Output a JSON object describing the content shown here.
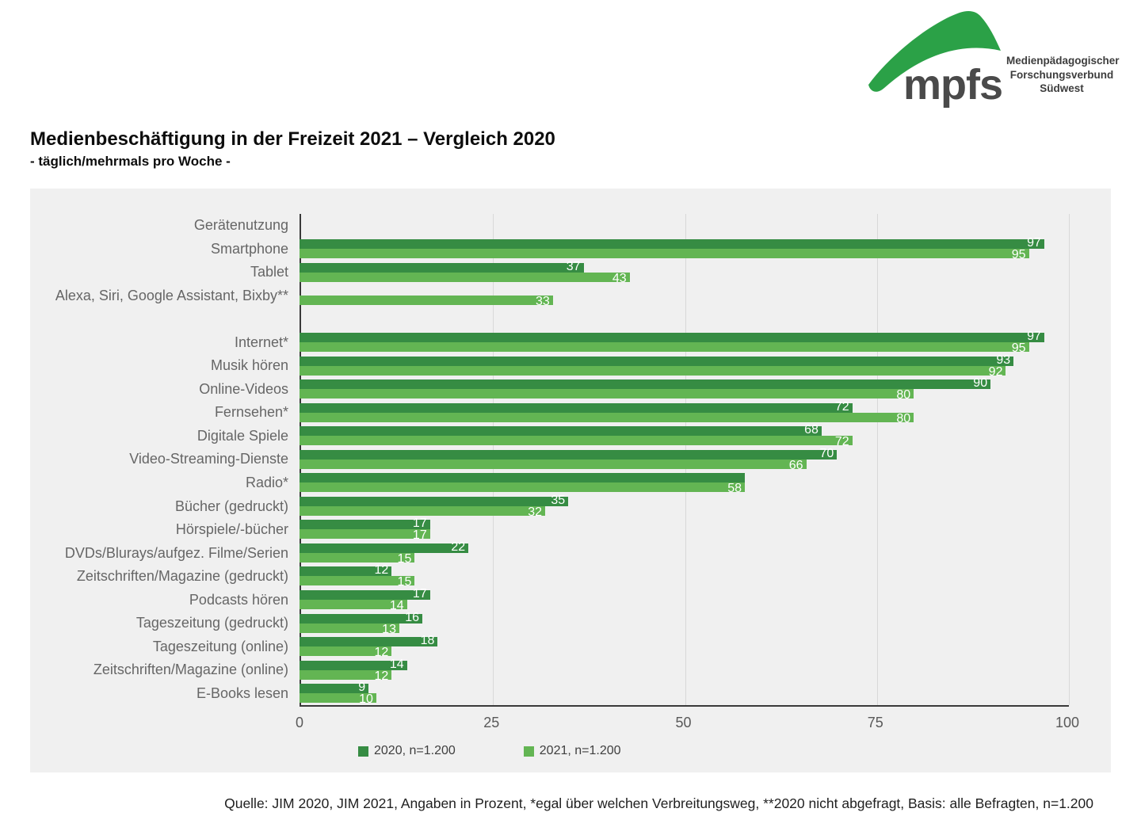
{
  "logo": {
    "brand": "mpfs",
    "org_lines": [
      "Medienpädagogischer",
      "Forschungsverbund",
      "Südwest"
    ],
    "swoosh_color": "#2ba147"
  },
  "header": {
    "title": "Medienbeschäftigung in der Freizeit 2021 – Vergleich 2020",
    "subtitle": "- täglich/mehrmals pro Woche -"
  },
  "chart_data": {
    "type": "bar",
    "orientation": "horizontal",
    "title": "Medienbeschäftigung in der Freizeit 2021 – Vergleich 2020",
    "subtitle": "- täglich/mehrmals pro Woche -",
    "unit": "Prozent",
    "xlim": [
      0,
      100
    ],
    "xticks": [
      0,
      25,
      50,
      75,
      100
    ],
    "grid": "vertical",
    "legend_position": "bottom",
    "panel_background": "#f0f0f0",
    "series": [
      {
        "name": "2020, n=1.200",
        "color": "#368c43"
      },
      {
        "name": "2021, n=1.200",
        "color": "#63b553"
      }
    ],
    "rows": [
      {
        "type": "section",
        "label": "Gerätenutzung"
      },
      {
        "type": "bars",
        "label": "Smartphone",
        "v2020": 97,
        "v2021": 95
      },
      {
        "type": "bars",
        "label": "Tablet",
        "v2020": 37,
        "v2021": 43
      },
      {
        "type": "bars",
        "label": "Alexa, Siri, Google Assistant, Bixby**",
        "v2020": null,
        "v2021": 33
      },
      {
        "type": "spacer",
        "label": ""
      },
      {
        "type": "bars",
        "label": "Internet*",
        "v2020": 97,
        "v2021": 95
      },
      {
        "type": "bars",
        "label": "Musik hören",
        "v2020": 93,
        "v2021": 92
      },
      {
        "type": "bars",
        "label": "Online-Videos",
        "v2020": 90,
        "v2021": 80
      },
      {
        "type": "bars",
        "label": "Fernsehen*",
        "v2020": 72,
        "v2021": 80
      },
      {
        "type": "bars",
        "label": "Digitale Spiele",
        "v2020": 68,
        "v2021": 72
      },
      {
        "type": "bars",
        "label": "Video-Streaming-Dienste",
        "v2020": 70,
        "v2021": 66
      },
      {
        "type": "bars",
        "label": "Radio*",
        "v2020": 58,
        "v2021": 58,
        "show2020Label": false
      },
      {
        "type": "bars",
        "label": "Bücher (gedruckt)",
        "v2020": 35,
        "v2021": 32
      },
      {
        "type": "bars",
        "label": "Hörspiele/-bücher",
        "v2020": 17,
        "v2021": 17
      },
      {
        "type": "bars",
        "label": "DVDs/Blurays/aufgez. Filme/Serien",
        "v2020": 22,
        "v2021": 15
      },
      {
        "type": "bars",
        "label": "Zeitschriften/Magazine (gedruckt)",
        "v2020": 12,
        "v2021": 15
      },
      {
        "type": "bars",
        "label": "Podcasts hören",
        "v2020": 17,
        "v2021": 14
      },
      {
        "type": "bars",
        "label": "Tageszeitung (gedruckt)",
        "v2020": 16,
        "v2021": 13
      },
      {
        "type": "bars",
        "label": "Tageszeitung (online)",
        "v2020": 18,
        "v2021": 12
      },
      {
        "type": "bars",
        "label": "Zeitschriften/Magazine (online)",
        "v2020": 14,
        "v2021": 12
      },
      {
        "type": "bars",
        "label": "E-Books lesen",
        "v2020": 9,
        "v2021": 10
      }
    ]
  },
  "footer": {
    "source": "Quelle: JIM 2020, JIM 2021, Angaben in Prozent, *egal über welchen Verbreitungsweg, **2020 nicht abgefragt, Basis: alle Befragten, n=1.200"
  },
  "colors": {
    "bar_2020": "#368c43",
    "bar_2021": "#63b553",
    "panel_bg": "#f0f0f0",
    "axis_line": "#3a3a3a",
    "gridline": "#d8d8d8",
    "category_label": "#666666",
    "tick_label": "#595959"
  }
}
